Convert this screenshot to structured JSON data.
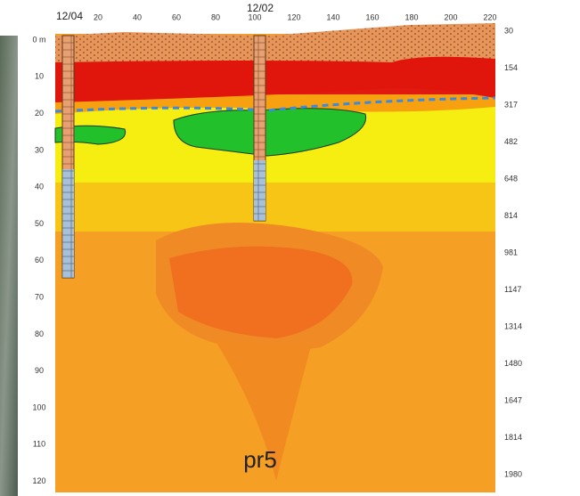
{
  "boreholes": [
    "12/04",
    "12/02"
  ],
  "distance_labels": [
    "20",
    "40",
    "60",
    "80",
    "100",
    "120",
    "140",
    "160",
    "180",
    "200",
    "220"
  ],
  "depth_labels": [
    "0 m",
    "10",
    "20",
    "30",
    "40",
    "50",
    "60",
    "70",
    "80",
    "90",
    "100",
    "110",
    "120"
  ],
  "right_labels": [
    "30",
    "154",
    "317",
    "482",
    "648",
    "814",
    "981",
    "1147",
    "1314",
    "1480",
    "1647",
    "1814",
    "1980"
  ],
  "section_label": "pr5"
}
